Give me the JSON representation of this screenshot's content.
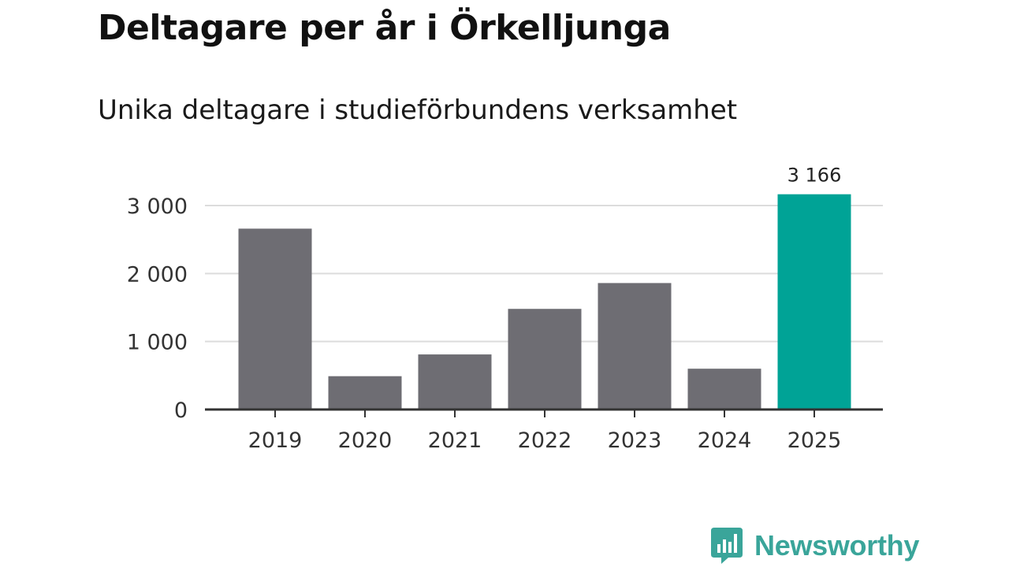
{
  "title": "Deltagare per år i Örkelljunga",
  "subtitle": "Unika deltagare i studieförbundens verksamhet",
  "brand": {
    "name": "Newsworthy",
    "color": "#3aa59a",
    "icon": "bar-chart-bubble-icon"
  },
  "chart_data": {
    "type": "bar",
    "title": "Deltagare per år i Örkelljunga",
    "subtitle": "Unika deltagare i studieförbundens verksamhet",
    "xlabel": "",
    "ylabel": "",
    "categories": [
      "2019",
      "2020",
      "2021",
      "2022",
      "2023",
      "2024",
      "2025"
    ],
    "values": [
      2660,
      490,
      810,
      1480,
      1860,
      600,
      3166
    ],
    "ylim": [
      0,
      3000
    ],
    "yticks": [
      0,
      1000,
      2000,
      3000
    ],
    "ytick_labels": [
      "0",
      "1 000",
      "2 000",
      "3 000"
    ],
    "grid": true,
    "bar_color": "#6e6d73",
    "highlight": {
      "category": "2025",
      "color": "#00a396",
      "label": "3 166"
    }
  }
}
